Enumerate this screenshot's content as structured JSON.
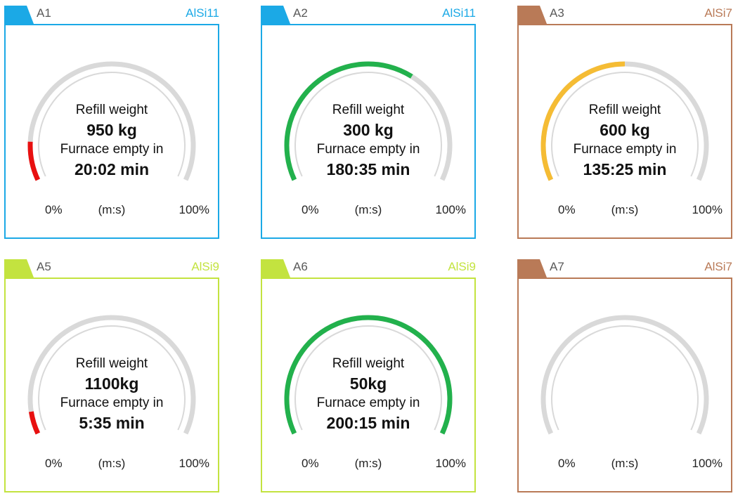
{
  "scale": {
    "min_label": "0%",
    "unit_label": "(m:s)",
    "max_label": "100%"
  },
  "colors": {
    "track": "#d9d9d9",
    "red": "#e81010",
    "green": "#22b14c",
    "orange": "#f5bc34",
    "blue": "#1ba9e6",
    "brown": "#b97a57",
    "lime": "#c3e33f"
  },
  "furnaces": [
    {
      "label": "A1",
      "alloy": "AlSi11",
      "theme": "blue",
      "fill_percent": 12,
      "fill_color": "red",
      "refill_label": "Refill weight",
      "refill_value": "950 kg",
      "empty_label": "Furnace empty in",
      "empty_value": "20:02 min"
    },
    {
      "label": "A2",
      "alloy": "AlSi11",
      "theme": "blue",
      "fill_percent": 64,
      "fill_color": "green",
      "refill_label": "Refill weight",
      "refill_value": "300 kg",
      "empty_label": "Furnace empty in",
      "empty_value": "180:35 min"
    },
    {
      "label": "A3",
      "alloy": "AlSi7",
      "theme": "brown",
      "fill_percent": 50,
      "fill_color": "orange",
      "refill_label": "Refill weight",
      "refill_value": "600 kg",
      "empty_label": "Furnace empty in",
      "empty_value": "135:25 min"
    },
    {
      "label": "A5",
      "alloy": "AlSi9",
      "theme": "lime",
      "fill_percent": 7,
      "fill_color": "red",
      "refill_label": "Refill weight",
      "refill_value": "1100kg",
      "empty_label": "Furnace empty in",
      "empty_value": "5:35 min"
    },
    {
      "label": "A6",
      "alloy": "AlSi9",
      "theme": "lime",
      "fill_percent": 100,
      "fill_color": "green",
      "refill_label": "Refill weight",
      "refill_value": "50kg",
      "empty_label": "Furnace empty in",
      "empty_value": "200:15 min"
    },
    {
      "label": "A7",
      "alloy": "AlSi7",
      "theme": "brown",
      "fill_percent": 0,
      "fill_color": "green",
      "refill_label": "",
      "refill_value": "",
      "empty_label": "",
      "empty_value": ""
    }
  ]
}
